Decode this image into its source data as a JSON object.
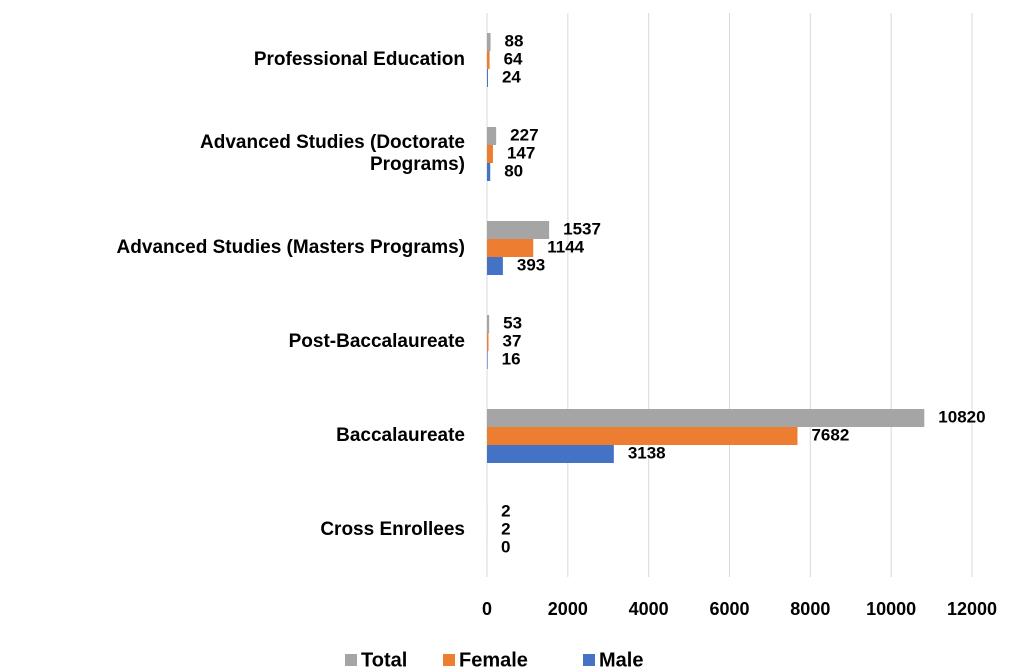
{
  "chart_data": {
    "type": "bar",
    "orientation": "horizontal",
    "categories": [
      "Professional Education",
      "Advanced Studies (Doctorate\nPrograms)",
      "Advanced Studies (Masters Programs)",
      "Post-Baccalaureate",
      "Baccalaureate",
      "Cross Enrollees"
    ],
    "series": [
      {
        "name": "Total",
        "color": "#a5a5a5",
        "values": [
          88,
          227,
          1537,
          53,
          10820,
          2
        ]
      },
      {
        "name": "Female",
        "color": "#ed7d31",
        "values": [
          64,
          147,
          1144,
          37,
          7682,
          2
        ]
      },
      {
        "name": "Male",
        "color": "#4472c4",
        "values": [
          24,
          80,
          393,
          16,
          3138,
          0
        ]
      }
    ],
    "xlim": [
      0,
      12000
    ],
    "xticks": [
      0,
      2000,
      4000,
      6000,
      8000,
      10000,
      12000
    ],
    "grid": true,
    "legend": "bottom"
  }
}
